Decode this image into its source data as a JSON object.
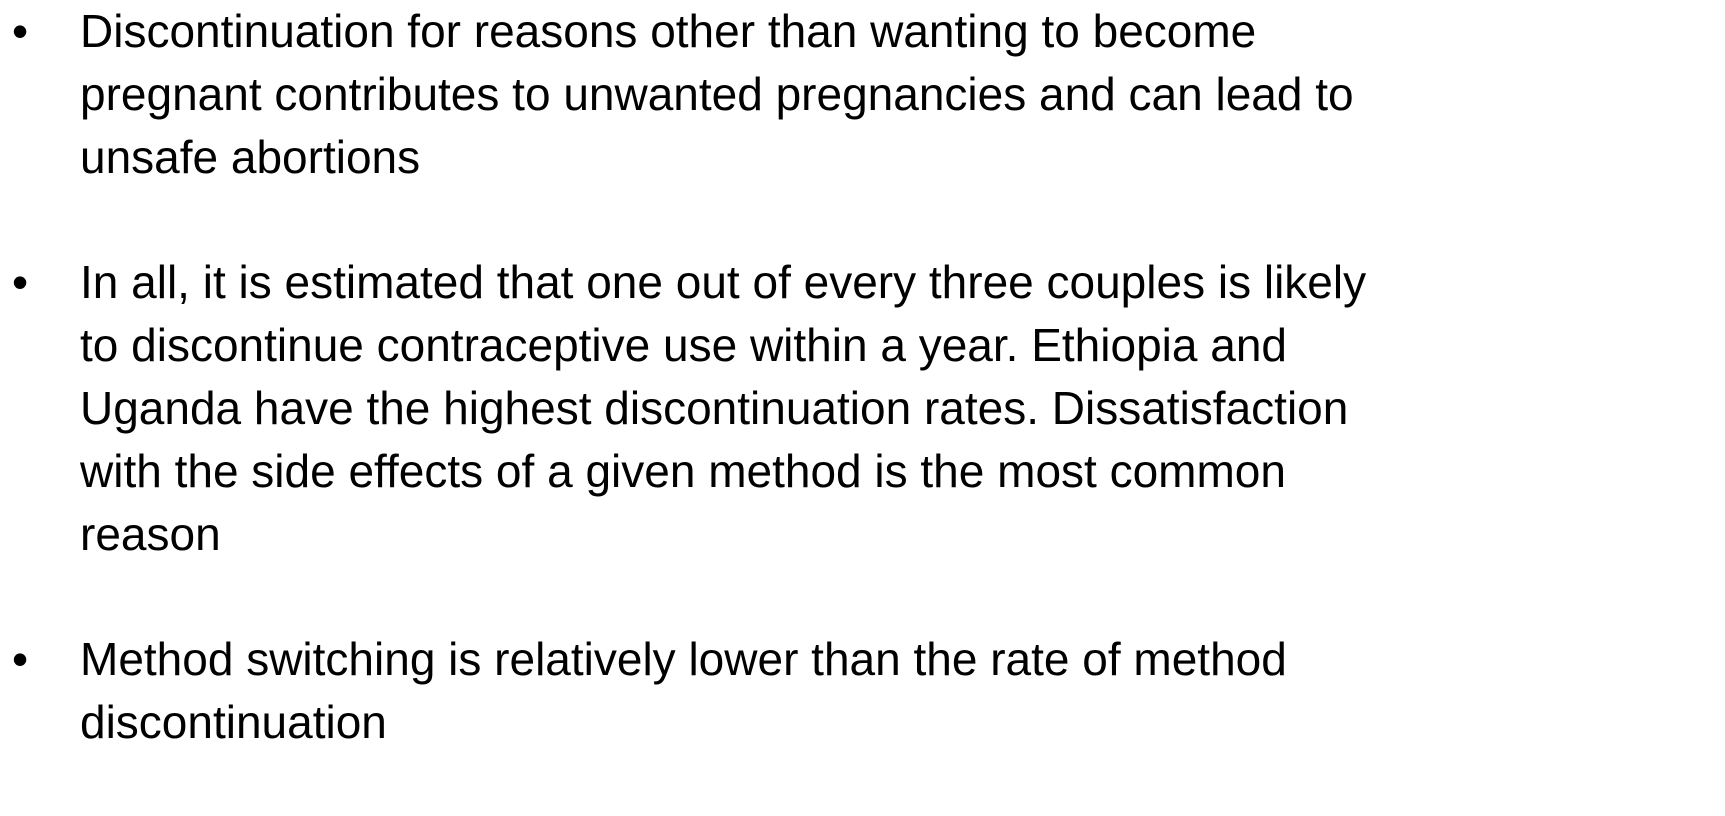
{
  "bullets": [
    {
      "lines": [
        "Discontinuation for reasons other than wanting to become",
        "pregnant contributes to unwanted pregnancies and can lead to",
        "unsafe abortions"
      ]
    },
    {
      "lines": [
        "In all, it is estimated that one out of every three couples is likely",
        "to discontinue contraceptive use within a year. Ethiopia and",
        "Uganda have the highest discontinuation rates. Dissatisfaction",
        "with the side effects of a given method is the most common",
        "reason"
      ]
    },
    {
      "lines": [
        "Method switching is relatively lower than the rate of method",
        "discontinuation"
      ]
    }
  ]
}
